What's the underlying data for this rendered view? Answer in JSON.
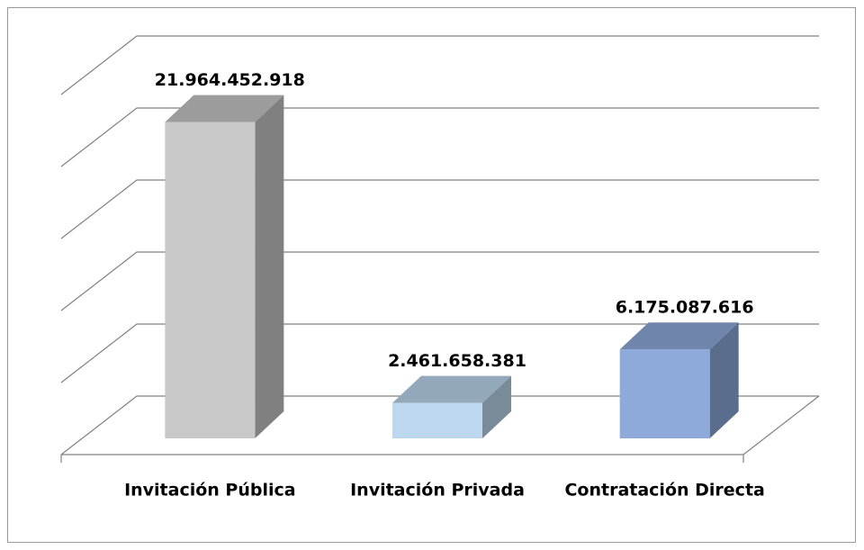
{
  "chart_data": {
    "type": "bar3d",
    "categories": [
      "Invitación Pública",
      "Invitación Privada",
      "Contratación Directa"
    ],
    "values": [
      21964452918,
      2461658381,
      6175087616
    ],
    "value_labels": [
      "21.964.452.918",
      "2.461.658.381",
      "6.175.087.616"
    ],
    "colors": [
      "#c8c8c8",
      "#bdd7ee",
      "#8eaadb"
    ],
    "ylim": [
      0,
      25000000000
    ],
    "yticks": [
      0,
      5000000000,
      10000000000,
      15000000000,
      20000000000,
      25000000000
    ],
    "grid": true
  }
}
